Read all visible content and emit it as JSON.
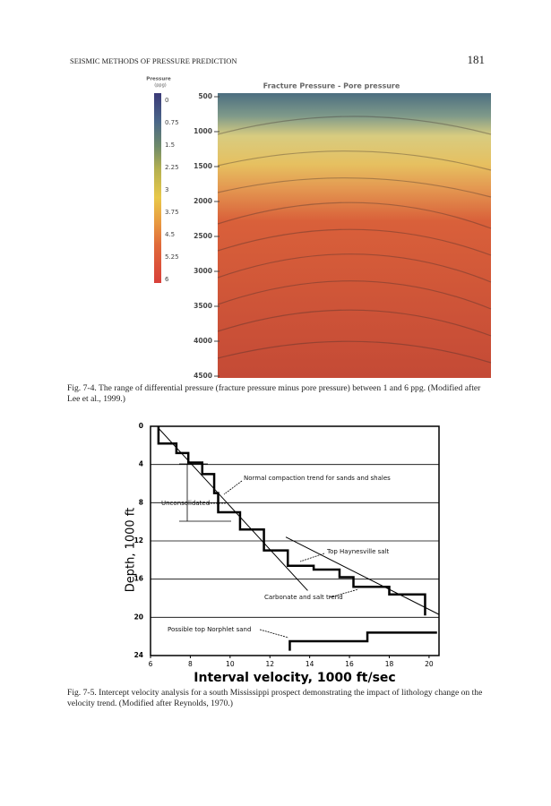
{
  "header": {
    "running_title": "SEISMIC METHODS OF PRESSURE PREDICTION",
    "page_number": "181"
  },
  "figure_1": {
    "title": "Fracture Pressure - Pore pressure",
    "colorbar_title": "Pressure",
    "colorbar_unit": "(ppg)",
    "colorbar_labels": [
      0,
      0.75,
      1.5,
      2.25,
      3,
      3.75,
      4.5,
      5.25,
      6
    ],
    "depth_ticks": [
      500,
      1000,
      1500,
      2000,
      2500,
      3000,
      3500,
      4000,
      4500
    ],
    "caption": "Fig. 7-4. The range of differential pressure (fracture pressure minus pore pressure) between 1 and 6 ppg. (Modified after Lee et al., 1999.)"
  },
  "figure_2": {
    "xlabel": "Interval velocity, 1000 ft/sec",
    "ylabel": "Depth, 1000 ft",
    "xlim": [
      6,
      20.5
    ],
    "ylim": [
      0,
      24
    ],
    "xticks": [
      6,
      8,
      10,
      12,
      14,
      16,
      18,
      20
    ],
    "yticks": [
      0,
      4,
      8,
      12,
      16,
      20,
      24
    ],
    "step_velocity": [
      6.4,
      6.4,
      7.3,
      7.3,
      7.9,
      7.9,
      8.6,
      8.6,
      9.2,
      9.2,
      9.4,
      9.4,
      10.5,
      10.5,
      11.7,
      11.7,
      12.9,
      12.9,
      14.2,
      14.2,
      15.5,
      15.5,
      16.2,
      16.2,
      18.0,
      18.0,
      19.8,
      19.8
    ],
    "step_depth": [
      0,
      1.8,
      1.8,
      2.8,
      2.8,
      3.8,
      3.8,
      5.0,
      5.0,
      7.0,
      7.0,
      9.0,
      9.0,
      10.8,
      10.8,
      13.0,
      13.0,
      14.6,
      14.6,
      15.0,
      15.0,
      15.8,
      15.8,
      16.8,
      16.8,
      17.6,
      17.6,
      19.8
    ],
    "deep_velocity": [
      13.0,
      13.0,
      16.9,
      16.9,
      20.4
    ],
    "deep_depth": [
      23.5,
      22.5,
      22.5,
      21.6,
      21.6
    ],
    "normal_trend_velocity": [
      6.4,
      13.9
    ],
    "normal_trend_depth": [
      0.2,
      17.2
    ],
    "carbonate_trend_velocity": [
      12.8,
      20.5
    ],
    "carbonate_trend_depth": [
      11.6,
      19.7
    ],
    "annotations": [
      "Normal compaction trend for sands and shales",
      "Unconsolidated",
      "Top Haynesville salt",
      "Carbonate and salt trend",
      "Possible top Norphlet sand"
    ],
    "caption": "Fig. 7-5. Intercept velocity analysis for a south Mississippi prospect demonstrating the impact of lithology change on the velocity trend. (Modified after Reynolds, 1970.)"
  }
}
